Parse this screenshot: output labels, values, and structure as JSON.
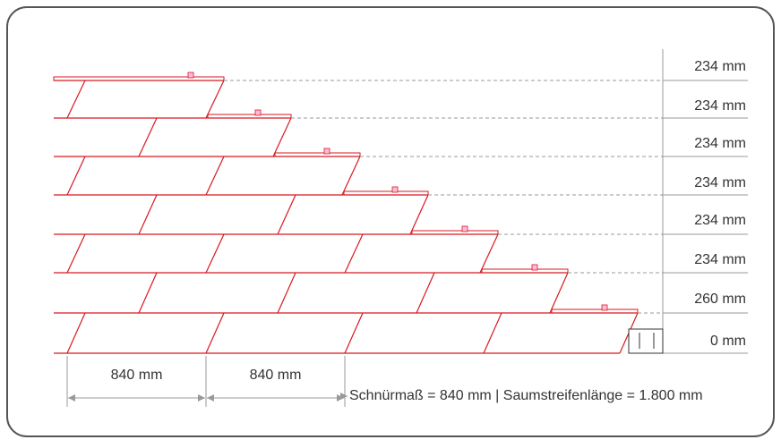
{
  "row_labels": [
    "234 mm",
    "234 mm",
    "234 mm",
    "234 mm",
    "234 mm",
    "234 mm",
    "260 mm",
    "0 mm"
  ],
  "width_labels": [
    "840 mm",
    "840 mm"
  ],
  "caption": "Schnürmaß = 840 mm | Saumstreifenlänge = 1.800 mm"
}
